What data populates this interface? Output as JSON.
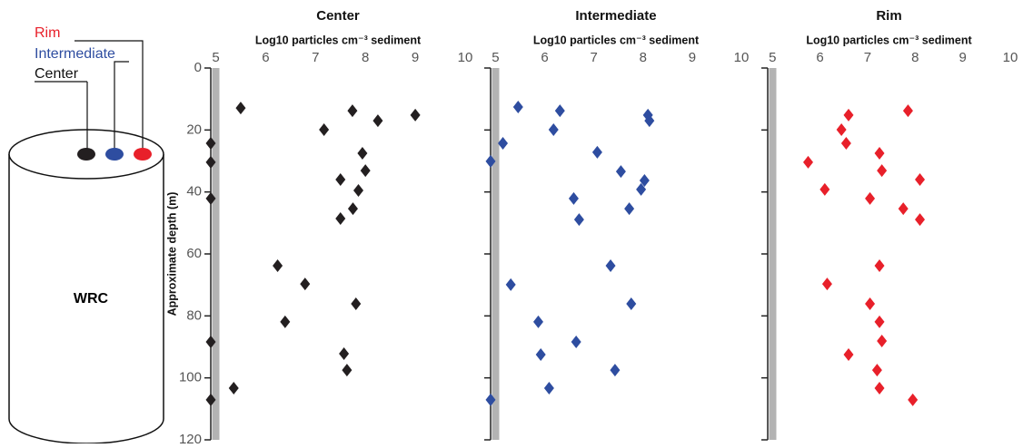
{
  "diagram": {
    "labels": [
      {
        "text": "Rim",
        "color": "#e8202a"
      },
      {
        "text": "Intermediate",
        "color": "#2e4da0"
      },
      {
        "text": "Center",
        "color": "#111111"
      }
    ],
    "core": "WRC"
  },
  "chart_data": [
    {
      "type": "scatter",
      "title": "Center",
      "xlabel": "Log10 particles cm⁻³ sediment",
      "ylabel": "Approximate depth (m)",
      "color": "#231f20",
      "x": [
        5.5,
        7.74,
        8.25,
        9.0,
        7.17,
        7.94,
        8.0,
        7.5,
        7.86,
        7.75,
        7.5,
        4.9,
        4.9,
        4.9,
        6.24,
        6.79,
        7.81,
        6.39,
        4.9,
        7.57,
        7.63,
        5.36,
        4.9
      ],
      "y": [
        12.9,
        13.8,
        17,
        15.2,
        19.9,
        27.5,
        33.1,
        36,
        39.5,
        45.4,
        48.6,
        24.3,
        30.4,
        42.1,
        63.8,
        69.7,
        76.1,
        81.9,
        88.4,
        92.2,
        97.5,
        103.3,
        107.1
      ],
      "xlim": [
        4.9,
        10
      ],
      "xticks": [
        5,
        6,
        7,
        8,
        9,
        10
      ],
      "ylim": [
        0,
        120
      ],
      "yticks": [
        0,
        20,
        40,
        60,
        80,
        100,
        120
      ],
      "y_inverted": true,
      "ytick_labels": true
    },
    {
      "type": "scatter",
      "title": "Intermediate",
      "xlabel": "Log10 particles cm⁻³ sediment",
      "color": "#2e4da0",
      "x": [
        5.46,
        6.31,
        8.1,
        8.13,
        6.18,
        5.15,
        4.9,
        7.07,
        7.55,
        8.03,
        7.96,
        6.59,
        7.72,
        6.7,
        7.34,
        5.31,
        7.76,
        5.87,
        6.64,
        5.92,
        7.43,
        6.09,
        4.9
      ],
      "y": [
        12.6,
        13.8,
        15.2,
        17,
        19.9,
        24.3,
        30.1,
        27.2,
        33.4,
        36.3,
        39.2,
        42.1,
        45.4,
        48.9,
        63.8,
        69.9,
        76.1,
        81.9,
        88.4,
        92.5,
        97.5,
        103.3,
        107.1
      ],
      "xlim": [
        4.9,
        10
      ],
      "xticks": [
        5,
        6,
        7,
        8,
        9,
        10
      ],
      "ylim": [
        0,
        120
      ],
      "yticks": [
        0,
        20,
        40,
        60,
        80,
        100,
        120
      ],
      "y_inverted": true,
      "ytick_labels": false
    },
    {
      "type": "scatter",
      "title": "Rim",
      "xlabel": "Log10 particles cm⁻³ sediment",
      "color": "#e8202a",
      "x": [
        7.85,
        6.6,
        6.45,
        6.55,
        7.25,
        5.75,
        7.3,
        8.1,
        6.1,
        7.05,
        7.75,
        8.1,
        7.25,
        6.15,
        7.05,
        7.25,
        7.3,
        6.6,
        7.2,
        7.25,
        7.95
      ],
      "y": [
        13.8,
        15.2,
        19.9,
        24.3,
        27.5,
        30.4,
        33.1,
        36,
        39.2,
        42.1,
        45.4,
        48.9,
        63.8,
        69.7,
        76.1,
        81.9,
        88.1,
        92.5,
        97.5,
        103.3,
        107.1
      ],
      "xlim": [
        4.9,
        10
      ],
      "xticks": [
        5,
        6,
        7,
        8,
        9,
        10
      ],
      "ylim": [
        0,
        120
      ],
      "yticks": [
        0,
        20,
        40,
        60,
        80,
        100,
        120
      ],
      "y_inverted": true,
      "ytick_labels": false
    }
  ]
}
